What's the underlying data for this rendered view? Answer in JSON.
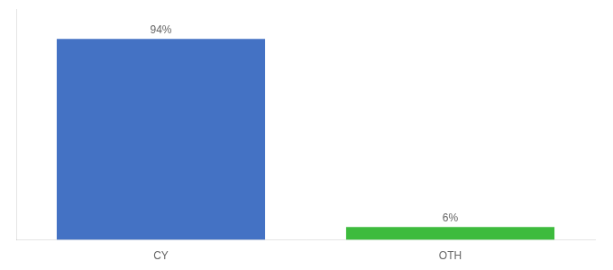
{
  "chart_data": {
    "type": "bar",
    "categories": [
      "CY",
      "OTH"
    ],
    "values": [
      94,
      6
    ],
    "value_labels": [
      "94%",
      "6%"
    ],
    "data_labels": true,
    "colors": [
      "#4472c4",
      "#3dbb3d"
    ],
    "ylim": [
      0,
      108
    ],
    "tick_labels": "x",
    "grid": false
  }
}
